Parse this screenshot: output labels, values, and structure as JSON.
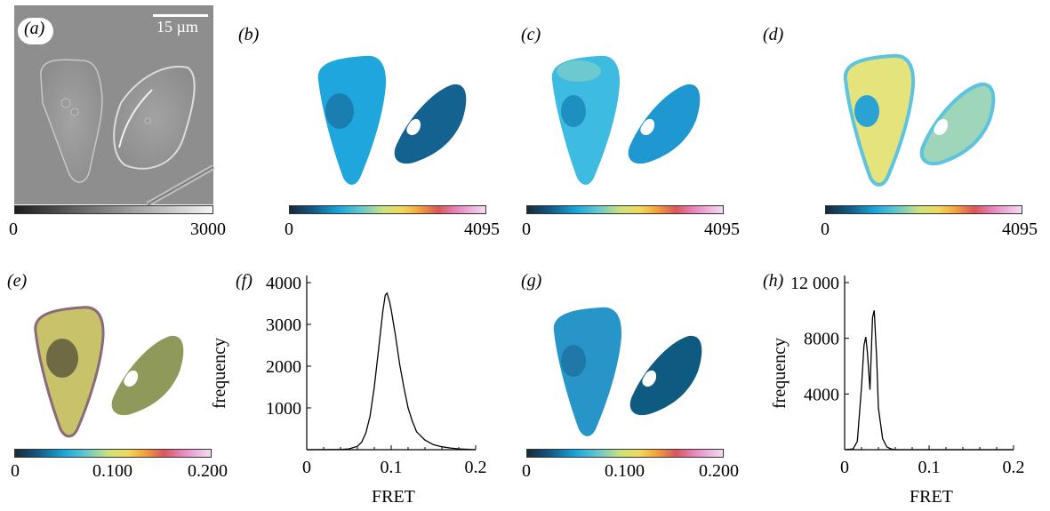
{
  "panels": {
    "a": {
      "label": "(a)",
      "scalebar": "15 µm",
      "cbar_min": "0",
      "cbar_max": "3000"
    },
    "b": {
      "label": "(b)",
      "cbar_min": "0",
      "cbar_max": "4095"
    },
    "c": {
      "label": "(c)",
      "cbar_min": "0",
      "cbar_max": "4095"
    },
    "d": {
      "label": "(d)",
      "cbar_min": "0",
      "cbar_max": "4095"
    },
    "e": {
      "label": "(e)",
      "cbar_min": "0",
      "cbar_mid": "0.100",
      "cbar_max": "0.200"
    },
    "f": {
      "label": "(f)"
    },
    "g": {
      "label": "(g)",
      "cbar_min": "0",
      "cbar_mid": "0.100",
      "cbar_max": "0.200"
    },
    "h": {
      "label": "(h)"
    }
  },
  "chart_data": [
    {
      "type": "line",
      "panel": "f",
      "xlabel": "FRET",
      "ylabel": "frequency",
      "xlim": [
        0,
        0.2
      ],
      "ylim": [
        0,
        4000
      ],
      "xticks": [
        "0",
        "0.1",
        "0.2"
      ],
      "yticks": [
        "1000",
        "2000",
        "3000",
        "4000"
      ],
      "series": [
        {
          "x": [
            0,
            0.04,
            0.05,
            0.06,
            0.065,
            0.07,
            0.075,
            0.08,
            0.085,
            0.09,
            0.093,
            0.095,
            0.098,
            0.1,
            0.105,
            0.11,
            0.115,
            0.12,
            0.125,
            0.13,
            0.14,
            0.15,
            0.16,
            0.17,
            0.18,
            0.19,
            0.2
          ],
          "y": [
            0,
            5,
            20,
            80,
            180,
            400,
            800,
            1500,
            2400,
            3300,
            3700,
            3750,
            3550,
            3350,
            2750,
            2050,
            1500,
            1000,
            680,
            430,
            230,
            120,
            70,
            40,
            20,
            10,
            0
          ]
        }
      ]
    },
    {
      "type": "line",
      "panel": "h",
      "xlabel": "FRET",
      "ylabel": "frequency",
      "xlim": [
        0,
        0.2
      ],
      "ylim": [
        0,
        12000
      ],
      "xticks": [
        "0",
        "0.1",
        "0.2"
      ],
      "yticks": [
        "4000",
        "8000",
        "12 000"
      ],
      "series": [
        {
          "x": [
            0,
            0.01,
            0.015,
            0.02,
            0.023,
            0.025,
            0.027,
            0.03,
            0.033,
            0.035,
            0.038,
            0.04,
            0.045,
            0.05,
            0.055,
            0.06,
            0.2
          ],
          "y": [
            0,
            50,
            600,
            4500,
            7500,
            8100,
            7000,
            4300,
            9500,
            10000,
            6500,
            3000,
            800,
            200,
            50,
            0,
            0
          ]
        }
      ]
    }
  ]
}
